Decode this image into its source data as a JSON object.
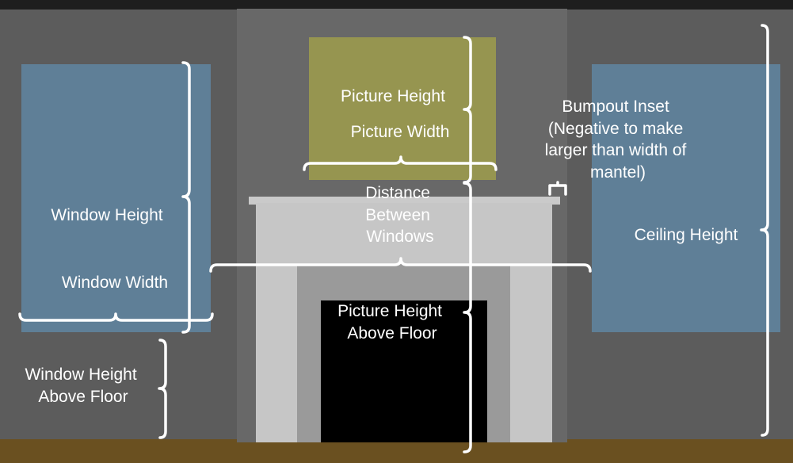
{
  "colors": {
    "wall": "#5c5c5c",
    "top_strip": "#1e1e1e",
    "bumpout": "#686868",
    "window": "#5f7f97",
    "picture": "#969550",
    "mantel": "#c6c6c6",
    "mantel_shelf": "#cacaca",
    "firebox_surround": "#9a9a9a",
    "firebox": "#000000",
    "floor": "#6a5020",
    "annotation": "#ffffff"
  },
  "labels": {
    "picture_height": "Picture Height",
    "picture_width": "Picture Width",
    "bumpout_inset": [
      "Bumpout Inset",
      "(Negative to make",
      "larger than width of",
      "mantel)"
    ],
    "distance_between_windows": [
      "Distance",
      "Between",
      "Windows"
    ],
    "window_height": "Window Height",
    "window_width": "Window Width",
    "ceiling_height": "Ceiling Height",
    "picture_height_above_floor": [
      "Picture Height",
      "Above Floor"
    ],
    "window_height_above_floor": [
      "Window Height",
      "Above Floor"
    ]
  }
}
